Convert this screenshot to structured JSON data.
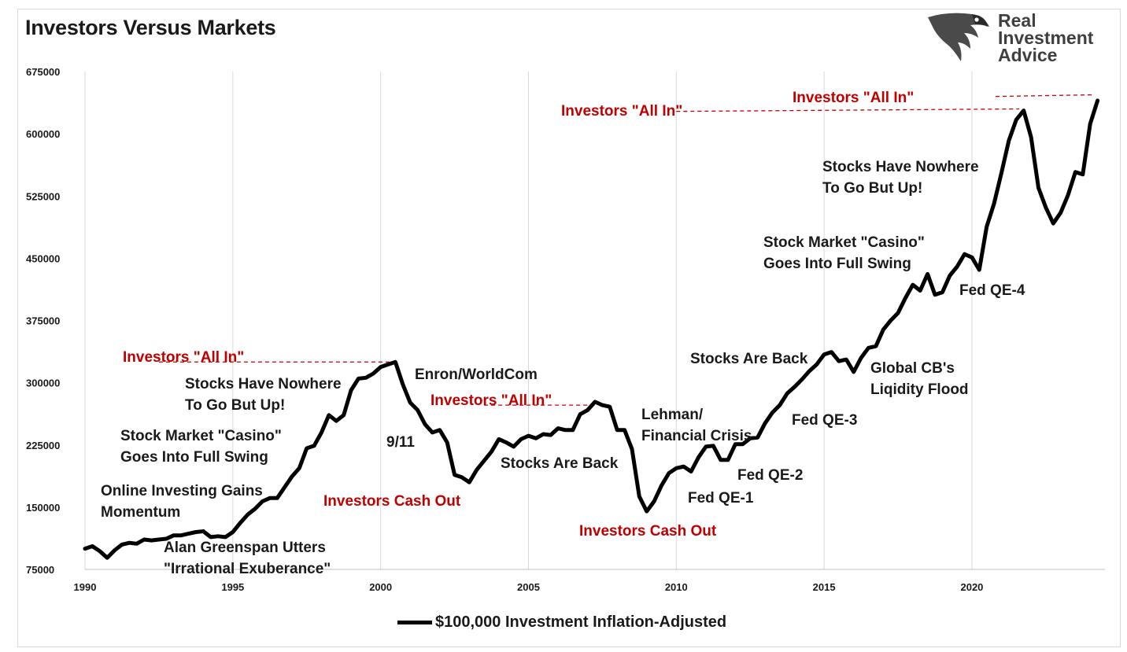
{
  "title": "Investors Versus Markets",
  "logo": {
    "line1": "Real",
    "line2": "Investment",
    "line3": "Advice",
    "icon": "eagle-head-icon"
  },
  "legend": {
    "label": "$100,000 Investment Inflation-Adjusted"
  },
  "colors": {
    "line": "#000000",
    "annotation_red": "#c00000",
    "annotation_black": "#1a1a1a",
    "grid": "#d9d9d9"
  },
  "chart_data": {
    "type": "line",
    "title": "Investors Versus Markets",
    "xlim": [
      1990,
      2024.5
    ],
    "ylim": [
      75000,
      675000
    ],
    "y_ticks": [
      75000,
      150000,
      225000,
      300000,
      375000,
      450000,
      525000,
      600000,
      675000
    ],
    "y_tick_labels": [
      "75000",
      "150000",
      "225000",
      "300000",
      "375000",
      "450000",
      "525000",
      "600000",
      "675000"
    ],
    "x_ticks": [
      1990,
      1995,
      2000,
      2005,
      2010,
      2015,
      2020
    ],
    "x_tick_labels": [
      "1990",
      "1995",
      "2000",
      "2005",
      "2010",
      "2015",
      "2020"
    ],
    "grid": "vertical at x ticks",
    "legend_position": "bottom-center",
    "series": [
      {
        "name": "$100,000 Investment Inflation-Adjusted",
        "points": [
          [
            1990.0,
            100000
          ],
          [
            1990.25,
            103000
          ],
          [
            1990.5,
            97000
          ],
          [
            1990.75,
            89000
          ],
          [
            1991.0,
            98000
          ],
          [
            1991.25,
            105000
          ],
          [
            1991.5,
            107000
          ],
          [
            1991.75,
            106000
          ],
          [
            1992.0,
            111000
          ],
          [
            1992.25,
            110000
          ],
          [
            1992.5,
            111000
          ],
          [
            1992.75,
            112000
          ],
          [
            1993.0,
            116000
          ],
          [
            1993.25,
            116000
          ],
          [
            1993.5,
            118000
          ],
          [
            1993.75,
            120000
          ],
          [
            1994.0,
            121000
          ],
          [
            1994.25,
            114000
          ],
          [
            1994.5,
            115000
          ],
          [
            1994.75,
            114000
          ],
          [
            1995.0,
            120000
          ],
          [
            1995.25,
            131000
          ],
          [
            1995.5,
            141000
          ],
          [
            1995.75,
            148000
          ],
          [
            1996.0,
            157000
          ],
          [
            1996.25,
            161000
          ],
          [
            1996.5,
            161000
          ],
          [
            1996.75,
            174000
          ],
          [
            1997.0,
            187000
          ],
          [
            1997.25,
            197000
          ],
          [
            1997.5,
            221000
          ],
          [
            1997.75,
            224000
          ],
          [
            1998.0,
            240000
          ],
          [
            1998.25,
            261000
          ],
          [
            1998.5,
            254000
          ],
          [
            1998.75,
            261000
          ],
          [
            1999.0,
            291000
          ],
          [
            1999.25,
            305000
          ],
          [
            1999.5,
            306000
          ],
          [
            1999.75,
            311000
          ],
          [
            2000.0,
            319000
          ],
          [
            2000.25,
            322000
          ],
          [
            2000.5,
            325000
          ],
          [
            2000.75,
            298000
          ],
          [
            2001.0,
            276000
          ],
          [
            2001.25,
            267000
          ],
          [
            2001.5,
            250000
          ],
          [
            2001.75,
            240000
          ],
          [
            2002.0,
            243000
          ],
          [
            2002.25,
            228000
          ],
          [
            2002.5,
            189000
          ],
          [
            2002.75,
            186000
          ],
          [
            2003.0,
            180000
          ],
          [
            2003.25,
            195000
          ],
          [
            2003.5,
            206000
          ],
          [
            2003.75,
            217000
          ],
          [
            2004.0,
            232000
          ],
          [
            2004.25,
            228000
          ],
          [
            2004.5,
            223000
          ],
          [
            2004.75,
            232000
          ],
          [
            2005.0,
            236000
          ],
          [
            2005.25,
            233000
          ],
          [
            2005.5,
            238000
          ],
          [
            2005.75,
            237000
          ],
          [
            2006.0,
            245000
          ],
          [
            2006.25,
            243000
          ],
          [
            2006.5,
            243000
          ],
          [
            2006.75,
            262000
          ],
          [
            2007.0,
            267000
          ],
          [
            2007.25,
            277000
          ],
          [
            2007.5,
            273000
          ],
          [
            2007.75,
            271000
          ],
          [
            2008.0,
            243000
          ],
          [
            2008.25,
            243000
          ],
          [
            2008.5,
            220000
          ],
          [
            2008.75,
            163000
          ],
          [
            2009.0,
            145000
          ],
          [
            2009.25,
            157000
          ],
          [
            2009.5,
            176000
          ],
          [
            2009.75,
            191000
          ],
          [
            2010.0,
            197000
          ],
          [
            2010.25,
            199000
          ],
          [
            2010.5,
            193000
          ],
          [
            2010.75,
            210000
          ],
          [
            2011.0,
            223000
          ],
          [
            2011.25,
            224000
          ],
          [
            2011.5,
            207000
          ],
          [
            2011.75,
            207000
          ],
          [
            2012.0,
            226000
          ],
          [
            2012.25,
            226000
          ],
          [
            2012.5,
            233000
          ],
          [
            2012.75,
            234000
          ],
          [
            2013.0,
            251000
          ],
          [
            2013.25,
            264000
          ],
          [
            2013.5,
            273000
          ],
          [
            2013.75,
            287000
          ],
          [
            2014.0,
            295000
          ],
          [
            2014.25,
            304000
          ],
          [
            2014.5,
            314000
          ],
          [
            2014.75,
            322000
          ],
          [
            2015.0,
            334000
          ],
          [
            2015.25,
            337000
          ],
          [
            2015.5,
            326000
          ],
          [
            2015.75,
            328000
          ],
          [
            2016.0,
            313000
          ],
          [
            2016.25,
            330000
          ],
          [
            2016.5,
            342000
          ],
          [
            2016.75,
            344000
          ],
          [
            2017.0,
            364000
          ],
          [
            2017.25,
            375000
          ],
          [
            2017.5,
            384000
          ],
          [
            2017.75,
            402000
          ],
          [
            2018.0,
            418000
          ],
          [
            2018.25,
            411000
          ],
          [
            2018.5,
            431000
          ],
          [
            2018.75,
            406000
          ],
          [
            2019.0,
            409000
          ],
          [
            2019.25,
            429000
          ],
          [
            2019.5,
            440000
          ],
          [
            2019.75,
            455000
          ],
          [
            2020.0,
            451000
          ],
          [
            2020.25,
            436000
          ],
          [
            2020.5,
            488000
          ],
          [
            2020.75,
            516000
          ],
          [
            2021.0,
            553000
          ],
          [
            2021.25,
            592000
          ],
          [
            2021.5,
            617000
          ],
          [
            2021.75,
            628000
          ],
          [
            2022.0,
            596000
          ],
          [
            2022.25,
            535000
          ],
          [
            2022.5,
            511000
          ],
          [
            2022.75,
            492000
          ],
          [
            2023.0,
            505000
          ],
          [
            2023.25,
            526000
          ],
          [
            2023.5,
            554000
          ],
          [
            2023.75,
            551000
          ],
          [
            2024.0,
            612000
          ],
          [
            2024.25,
            640000
          ]
        ]
      }
    ],
    "annotations": [
      {
        "text": "Online Investing Gains\nMomentum",
        "color": "black"
      },
      {
        "text": "Alan Greenspan Utters\n\"Irrational Exuberance\"",
        "color": "black"
      },
      {
        "text": "Stock Market \"Casino\"\nGoes Into Full Swing",
        "color": "black"
      },
      {
        "text": "Stocks Have Nowhere\nTo Go But Up!",
        "color": "black"
      },
      {
        "text": "Investors \"All In\"",
        "color": "red"
      },
      {
        "text": "Enron/WorldCom",
        "color": "black"
      },
      {
        "text": "9/11",
        "color": "black"
      },
      {
        "text": "Investors Cash Out",
        "color": "red"
      },
      {
        "text": "Investors \"All In\"",
        "color": "red"
      },
      {
        "text": "Stocks Are Back",
        "color": "black"
      },
      {
        "text": "Lehman/\nFinancial Crisis",
        "color": "black"
      },
      {
        "text": "Investors Cash Out",
        "color": "red"
      },
      {
        "text": "Fed QE-1",
        "color": "black"
      },
      {
        "text": "Fed QE-2",
        "color": "black"
      },
      {
        "text": "Fed QE-3",
        "color": "black"
      },
      {
        "text": "Stocks Are Back",
        "color": "black"
      },
      {
        "text": "Global CB's\nLiqidity Flood",
        "color": "black"
      },
      {
        "text": "Fed QE-4",
        "color": "black"
      },
      {
        "text": "Stock Market \"Casino\"\nGoes Into Full Swing",
        "color": "black"
      },
      {
        "text": "Stocks Have Nowhere\nTo Go But Up!",
        "color": "black"
      },
      {
        "text": "Investors \"All In\"",
        "color": "red"
      },
      {
        "text": "Investors \"All In\"",
        "color": "red"
      }
    ],
    "reference_lines": [
      {
        "style": "dashed",
        "color": "red",
        "from": [
          1992.5,
          325000
        ],
        "to": [
          2000.5,
          325000
        ]
      },
      {
        "style": "dashed",
        "color": "red",
        "from": [
          2003.5,
          273000
        ],
        "to": [
          2007.3,
          273000
        ]
      },
      {
        "style": "dashed",
        "color": "red",
        "from": [
          2010.0,
          627000
        ],
        "to": [
          2021.6,
          630000
        ]
      },
      {
        "style": "dashed",
        "color": "red",
        "from": [
          2020.8,
          645000
        ],
        "to": [
          2024.1,
          647000
        ]
      }
    ]
  }
}
